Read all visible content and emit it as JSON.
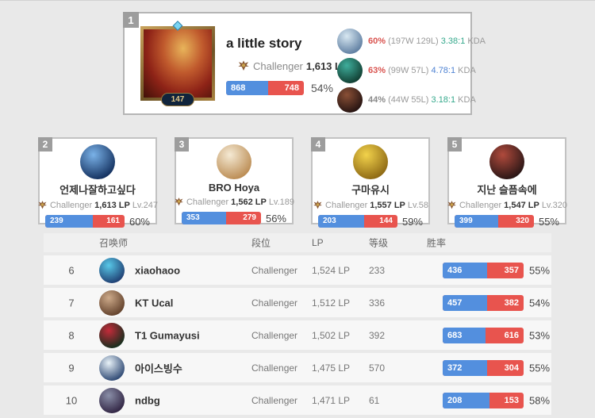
{
  "colors": {
    "win_blue": "#538fde",
    "loss_red": "#e8544e",
    "winrate_red": "#d9534f",
    "kda_teal": "#35a98c",
    "kda_blue": "#4f83d3",
    "badge_gray": "#9d9d9d",
    "page_bg": "#e9e9e9"
  },
  "top_player": {
    "rank": "1",
    "level": "147",
    "name": "a little story",
    "tier": "Challenger",
    "lp": "1,613 LP",
    "wins": 868,
    "losses": 748,
    "winrate": "54%",
    "champions": [
      {
        "winrate": "60%",
        "record": "(197W 129L)",
        "kda": "3.38:1",
        "kda_label": "KDA",
        "winrate_color": "#d9534f",
        "kda_color": "#35a98c",
        "avatar": [
          "#d8e8f2",
          "#5a7a9e"
        ]
      },
      {
        "winrate": "63%",
        "record": "(99W 57L)",
        "kda": "4.78:1",
        "kda_label": "KDA",
        "winrate_color": "#d9534f",
        "kda_color": "#4f83d3",
        "avatar": [
          "#3fae9c",
          "#0f3a2e"
        ]
      },
      {
        "winrate": "44%",
        "record": "(44W 55L)",
        "kda": "3.18:1",
        "kda_label": "KDA",
        "winrate_color": "#8a8a8a",
        "kda_color": "#35a98c",
        "avatar": [
          "#8a5036",
          "#221110"
        ]
      }
    ]
  },
  "cards": [
    {
      "rank": "2",
      "name": "언제나잘하고싶다",
      "tier": "Challenger",
      "lp": "1,613 LP",
      "level": "Lv.247",
      "wins": 239,
      "losses": 161,
      "winrate": "60%",
      "avatar": [
        "#7ab2e8",
        "#102c5a"
      ]
    },
    {
      "rank": "3",
      "name": "BRO Hoya",
      "tier": "Challenger",
      "lp": "1,562 LP",
      "level": "Lv.189",
      "wins": 353,
      "losses": 279,
      "winrate": "56%",
      "avatar": [
        "#f5ead4",
        "#b9894f"
      ]
    },
    {
      "rank": "4",
      "name": "구마유시",
      "tier": "Challenger",
      "lp": "1,557 LP",
      "level": "Lv.58",
      "wins": 203,
      "losses": 144,
      "winrate": "59%",
      "avatar": [
        "#f2d24b",
        "#8a6512"
      ]
    },
    {
      "rank": "5",
      "name": "지난 슬픔속에",
      "tier": "Challenger",
      "lp": "1,547 LP",
      "level": "Lv.320",
      "wins": 399,
      "losses": 320,
      "winrate": "55%",
      "avatar": [
        "#b04a3c",
        "#241414"
      ]
    }
  ],
  "table": {
    "headers": {
      "summoner": "召唤师",
      "tier": "段位",
      "lp": "LP",
      "level": "等级",
      "winrate": "胜率"
    },
    "rows": [
      {
        "rank": "6",
        "name": "xiaohaoo",
        "tier": "Challenger",
        "lp": "1,524 LP",
        "level": "233",
        "wins": 436,
        "losses": 357,
        "winrate": "55%",
        "avatar": [
          "#58c8e8",
          "#1d3a6e"
        ]
      },
      {
        "rank": "7",
        "name": "KT Ucal",
        "tier": "Challenger",
        "lp": "1,512 LP",
        "level": "336",
        "wins": 457,
        "losses": 382,
        "winrate": "54%",
        "avatar": [
          "#cdaa8a",
          "#5e3d28"
        ]
      },
      {
        "rank": "8",
        "name": "T1 Gumayusi",
        "tier": "Challenger",
        "lp": "1,502 LP",
        "level": "392",
        "wins": 683,
        "losses": 616,
        "winrate": "53%",
        "avatar": [
          "#c42b3a",
          "#0e2e1c"
        ]
      },
      {
        "rank": "9",
        "name": "아이스빙수",
        "tier": "Challenger",
        "lp": "1,475 LP",
        "level": "570",
        "wins": 372,
        "losses": 304,
        "winrate": "55%",
        "avatar": [
          "#e8f2f8",
          "#27426e"
        ]
      },
      {
        "rank": "10",
        "name": "ndbg",
        "tier": "Challenger",
        "lp": "1,471 LP",
        "level": "61",
        "wins": 208,
        "losses": 153,
        "winrate": "58%",
        "avatar": [
          "#8a8fa8",
          "#2e2140"
        ]
      }
    ]
  }
}
